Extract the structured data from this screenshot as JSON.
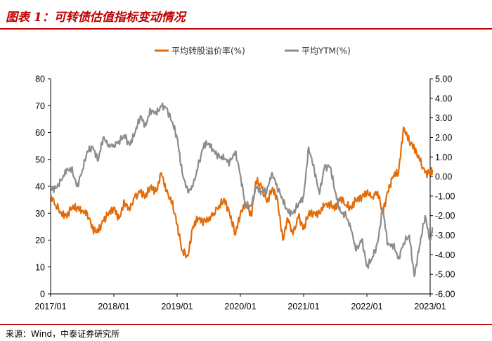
{
  "header": {
    "title": "图表 1：可转债估值指标变动情况"
  },
  "footer": {
    "source": "来源：Wind，中泰证券研究所"
  },
  "chart_data": {
    "type": "line",
    "x_ticks": [
      "2017/01",
      "2018/01",
      "2019/01",
      "2020/01",
      "2021/01",
      "2022/01",
      "2023/01"
    ],
    "x_range": [
      "2017/01",
      "2023/01"
    ],
    "y_left": {
      "lim": [
        0,
        80
      ],
      "ticks": [
        "0",
        "10",
        "20",
        "30",
        "40",
        "50",
        "60",
        "70",
        "80"
      ]
    },
    "y_right": {
      "lim": [
        -6,
        5
      ],
      "ticks": [
        "5.00",
        "4.00",
        "3.00",
        "2.00",
        "1.00",
        "0.00",
        "-1.00",
        "-2.00",
        "-3.00",
        "-4.00",
        "-5.00",
        "-6.00"
      ]
    },
    "legend_position": "top-center",
    "series": [
      {
        "name": "平均转股溢价率(%)",
        "axis": "left",
        "color": "#e36c0a",
        "x": [
          2017.0,
          2017.08,
          2017.17,
          2017.25,
          2017.33,
          2017.42,
          2017.5,
          2017.58,
          2017.67,
          2017.75,
          2017.83,
          2017.92,
          2018.0,
          2018.08,
          2018.17,
          2018.25,
          2018.33,
          2018.42,
          2018.5,
          2018.58,
          2018.67,
          2018.75,
          2018.83,
          2018.92,
          2019.0,
          2019.08,
          2019.17,
          2019.25,
          2019.33,
          2019.42,
          2019.5,
          2019.58,
          2019.67,
          2019.75,
          2019.83,
          2019.92,
          2020.0,
          2020.08,
          2020.17,
          2020.25,
          2020.33,
          2020.42,
          2020.5,
          2020.58,
          2020.67,
          2020.75,
          2020.83,
          2020.92,
          2021.0,
          2021.08,
          2021.17,
          2021.25,
          2021.33,
          2021.42,
          2021.5,
          2021.58,
          2021.67,
          2021.75,
          2021.83,
          2021.92,
          2022.0,
          2022.08,
          2022.17,
          2022.25,
          2022.33,
          2022.42,
          2022.5,
          2022.58,
          2022.67,
          2022.75,
          2022.83,
          2022.92,
          2023.0,
          2023.04
        ],
        "y": [
          37,
          33,
          30,
          29,
          32,
          32,
          31,
          30,
          24,
          23,
          27,
          30,
          32,
          28,
          34,
          31,
          36,
          38,
          36,
          40,
          38,
          45,
          38,
          34,
          26,
          16,
          14,
          25,
          28,
          27,
          28,
          30,
          33,
          35,
          30,
          22,
          30,
          34,
          29,
          42,
          40,
          34,
          39,
          36,
          20,
          28,
          22,
          29,
          24,
          30,
          30,
          30,
          33,
          33,
          32,
          36,
          33,
          32,
          35,
          36,
          38,
          36,
          38,
          30,
          38,
          44,
          45,
          62,
          57,
          54,
          50,
          45,
          45,
          46
        ]
      },
      {
        "name": "平均YTM(%)",
        "axis": "right",
        "color": "#8c8c8c",
        "x": [
          2017.0,
          2017.08,
          2017.17,
          2017.25,
          2017.33,
          2017.42,
          2017.5,
          2017.58,
          2017.67,
          2017.75,
          2017.83,
          2017.92,
          2018.0,
          2018.08,
          2018.17,
          2018.25,
          2018.33,
          2018.42,
          2018.5,
          2018.58,
          2018.67,
          2018.75,
          2018.83,
          2018.92,
          2019.0,
          2019.08,
          2019.17,
          2019.25,
          2019.33,
          2019.42,
          2019.5,
          2019.58,
          2019.67,
          2019.75,
          2019.83,
          2019.92,
          2020.0,
          2020.08,
          2020.17,
          2020.25,
          2020.33,
          2020.42,
          2020.5,
          2020.58,
          2020.67,
          2020.75,
          2020.83,
          2020.92,
          2021.0,
          2021.08,
          2021.17,
          2021.25,
          2021.33,
          2021.42,
          2021.5,
          2021.58,
          2021.67,
          2021.75,
          2021.83,
          2021.92,
          2022.0,
          2022.08,
          2022.17,
          2022.25,
          2022.33,
          2022.42,
          2022.5,
          2022.58,
          2022.67,
          2022.75,
          2022.83,
          2022.92,
          2023.0,
          2023.04
        ],
        "y": [
          -0.6,
          -0.6,
          -0.2,
          0.3,
          0.4,
          -0.5,
          0.3,
          1.3,
          1.5,
          0.8,
          2.0,
          1.6,
          1.6,
          1.8,
          2.1,
          1.6,
          2.2,
          3.1,
          2.6,
          3.4,
          3.2,
          3.6,
          3.5,
          2.8,
          2.0,
          0.2,
          -0.8,
          -0.5,
          0.5,
          1.6,
          1.7,
          1.3,
          1.0,
          0.9,
          0.7,
          1.3,
          0.1,
          -1.5,
          -1.5,
          -0.5,
          -0.8,
          -0.7,
          0.2,
          -0.5,
          -1.2,
          -1.8,
          -1.9,
          -1.4,
          -1.0,
          1.5,
          0.3,
          -0.9,
          0.5,
          0.5,
          -0.8,
          -1.8,
          -2.0,
          -2.7,
          -3.8,
          -3.2,
          -4.6,
          -4.2,
          -3.4,
          -1.6,
          -3.5,
          -3.5,
          -4.2,
          -3.4,
          -3.0,
          -5.1,
          -3.6,
          -2.0,
          -3.3,
          -2.6
        ]
      }
    ]
  }
}
